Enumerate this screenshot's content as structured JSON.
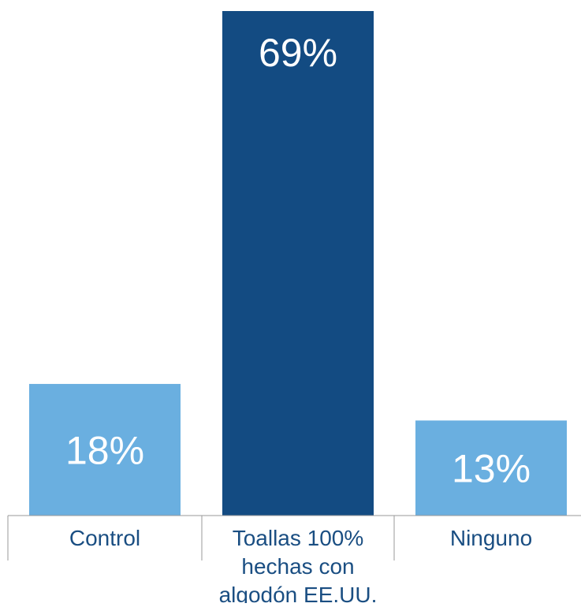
{
  "chart_data": {
    "type": "bar",
    "categories": [
      [
        "Control"
      ],
      [
        "Toallas 100%",
        "hechas con",
        "algodón EE.UU."
      ],
      [
        "Ninguno"
      ]
    ],
    "values": [
      18,
      69,
      13
    ],
    "value_labels": [
      "18%",
      "69%",
      "13%"
    ],
    "ylim": [
      0,
      69
    ],
    "grid": false,
    "legend": "none",
    "colors": [
      "#6aafe0",
      "#134b82",
      "#6aafe0"
    ],
    "label_colors": {
      "value_text": "#ffffff",
      "category_text": "#1a4e82",
      "axis_line": "#999999"
    }
  }
}
